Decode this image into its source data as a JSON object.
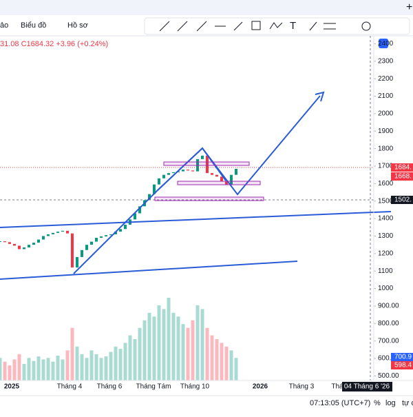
{
  "toolbar": {
    "items": [
      "ảo",
      "Biểu đồ",
      "Hồ sơ"
    ]
  },
  "legend": "31.08 C1684.32 +3.96 (+0.24%)",
  "chart_data": {
    "type": "candlestick",
    "ylim": [
      474,
      2445
    ],
    "yticks": [
      2400,
      2300,
      2200,
      2100,
      2000,
      1900,
      1800,
      1700,
      1600,
      1500,
      1400,
      1300,
      1200,
      1100,
      1000,
      {
        "value": 900,
        "label": "900.00"
      },
      {
        "value": 800,
        "label": "800.00"
      },
      {
        "value": 700,
        "label": "700.00"
      },
      {
        "value": 600,
        "label": "600.00"
      },
      {
        "value": 500,
        "label": "500.00"
      }
    ],
    "x_labels": [
      "2025",
      "Tháng 4",
      "Tháng 6",
      "Tháng Tám",
      "Tháng 10",
      "2026",
      "Tháng 3",
      "Thá"
    ],
    "close": [
      1270,
      1265,
      1255,
      1245,
      1225,
      1235,
      1250,
      1262,
      1280,
      1300,
      1310,
      1318,
      1325,
      1330,
      1315,
      1120,
      1180,
      1220,
      1250,
      1268,
      1290,
      1298,
      1305,
      1310,
      1325,
      1340,
      1365,
      1395,
      1430,
      1470,
      1505,
      1540,
      1595,
      1630,
      1650,
      1660,
      1665,
      1670,
      1680,
      1675,
      1670,
      1740,
      1760,
      1660,
      1650,
      1640,
      1615,
      1595,
      1650,
      1684.32
    ],
    "volume": [
      30,
      25,
      20,
      28,
      35,
      22,
      30,
      26,
      32,
      28,
      30,
      25,
      33,
      28,
      40,
      70,
      45,
      35,
      30,
      40,
      35,
      30,
      32,
      38,
      45,
      42,
      50,
      60,
      55,
      70,
      80,
      90,
      85,
      100,
      95,
      110,
      90,
      85,
      75,
      70,
      80,
      100,
      95,
      70,
      60,
      55,
      50,
      45,
      40,
      30
    ],
    "price_labels": [
      "1684.",
      "1668.",
      "1502.",
      "700.9",
      "598.4"
    ],
    "crosshair_label": "04 Tháng 6 '26"
  },
  "status": {
    "time": "07:13:05 (UTC+7)",
    "percent": "%",
    "log": "log",
    "auto": "tự đ"
  }
}
